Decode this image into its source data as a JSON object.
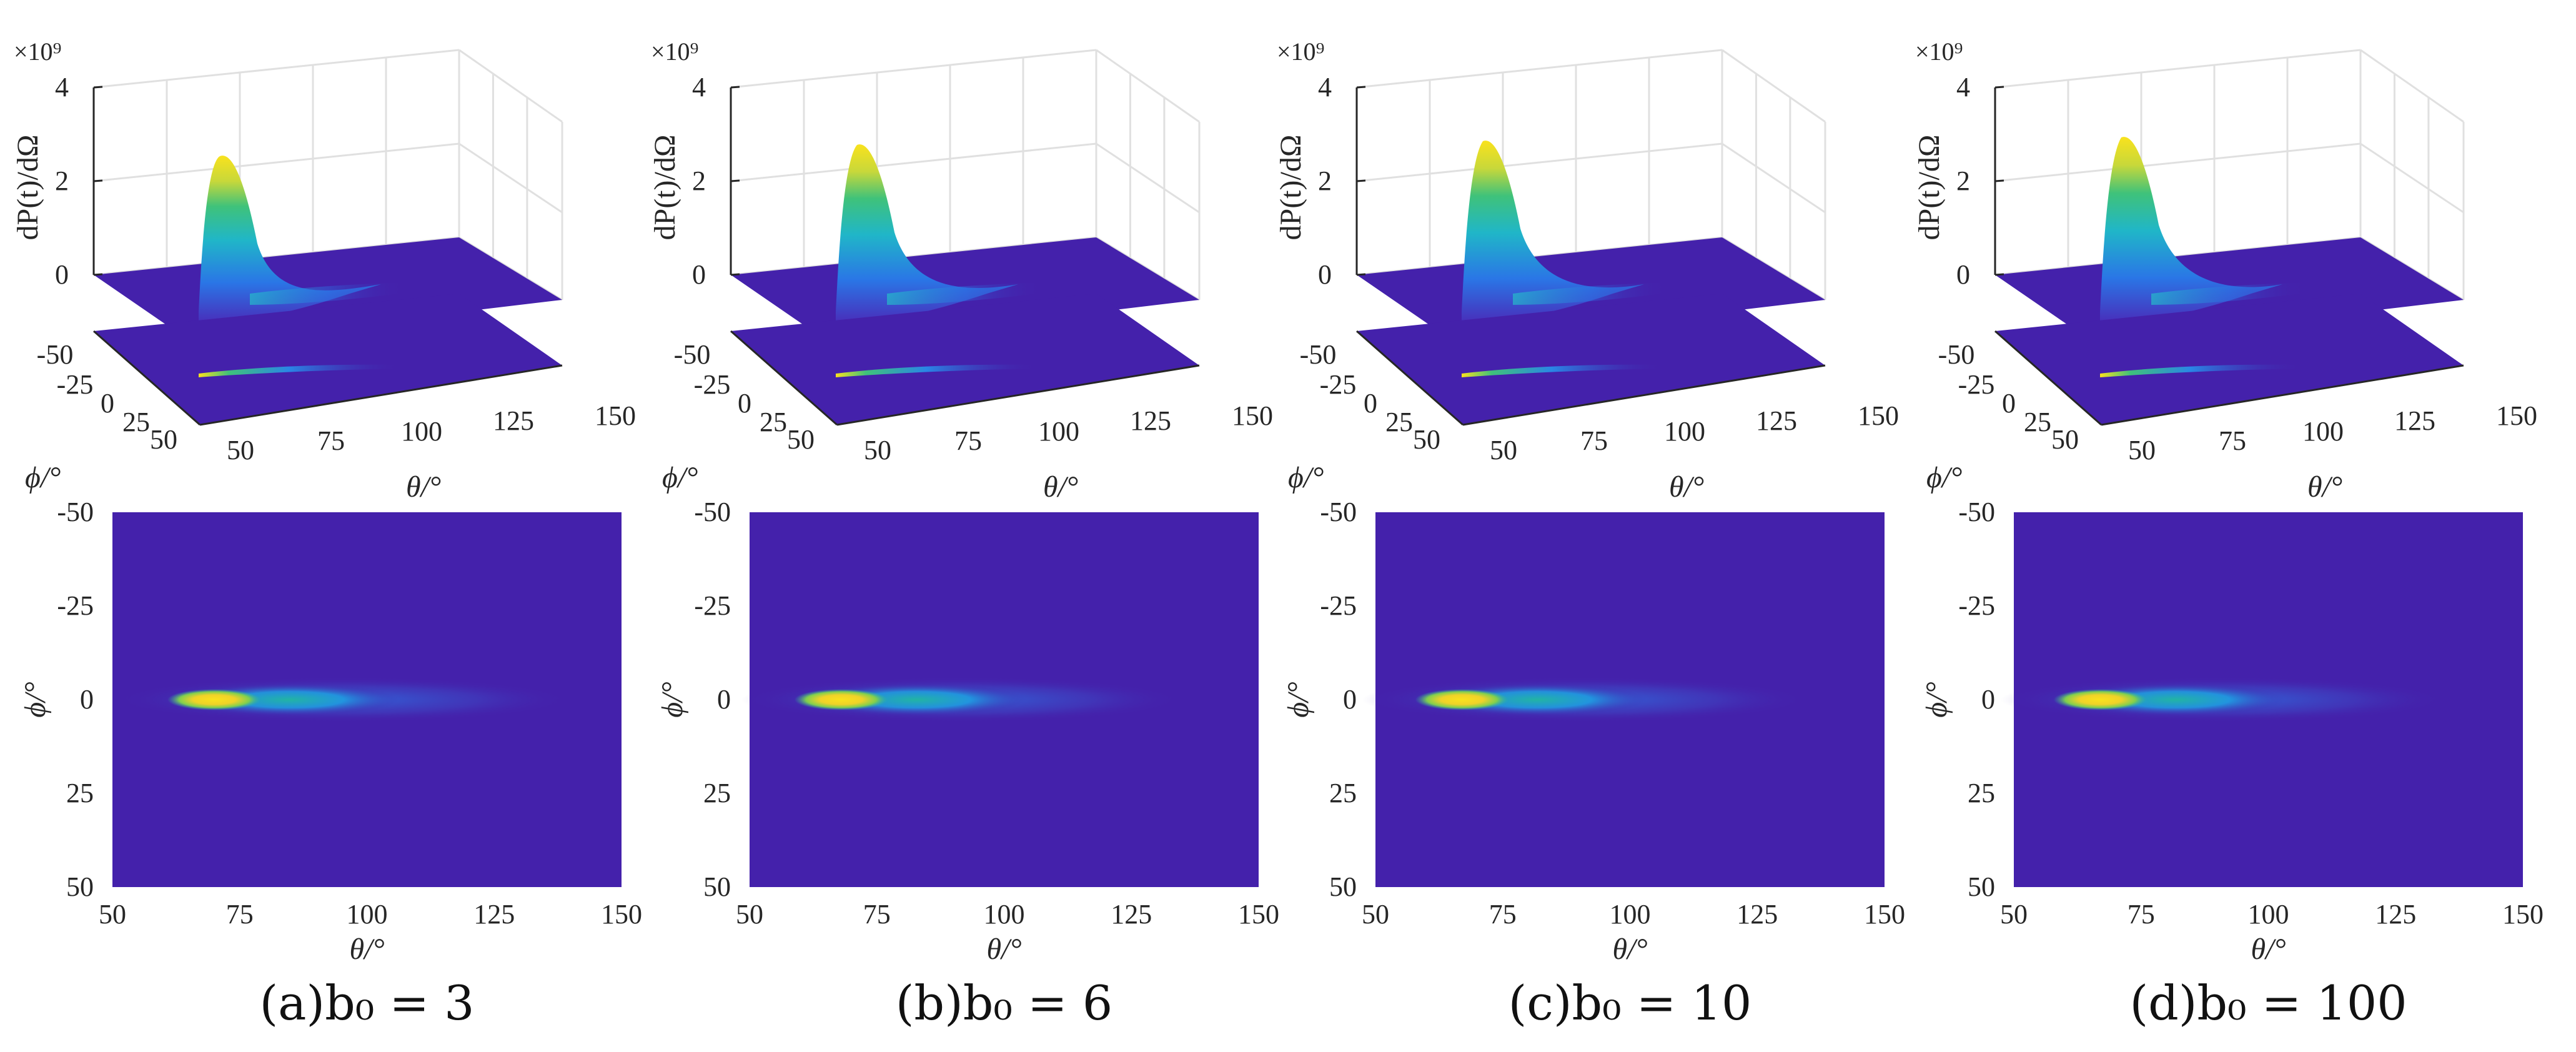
{
  "chart_data": [
    {
      "panel": "a",
      "caption": "(a)b₀ = 3",
      "type": "heatmap",
      "surface_3d": {
        "zlabel": "dP(t)/dΩ",
        "z_multiplier": "×10⁹",
        "z_ticks": [
          "0",
          "2",
          "4"
        ],
        "x_ticks": [
          "50",
          "75",
          "100",
          "125",
          "150"
        ],
        "y_ticks": [
          "-50",
          "-25",
          "0",
          "25",
          "50"
        ],
        "xlabel": "θ/°",
        "ylabel": "ϕ/°",
        "peak": {
          "theta": 70,
          "phi": 0,
          "value": 2.8
        }
      },
      "map_2d": {
        "xlabel": "θ/°",
        "ylabel": "ϕ/°",
        "x_ticks": [
          "50",
          "75",
          "100",
          "125",
          "150"
        ],
        "y_ticks": [
          "-50",
          "-25",
          "0",
          "25",
          "50"
        ],
        "xlim": [
          50,
          150
        ],
        "ylim": [
          -50,
          50
        ],
        "hotspot": {
          "theta_peak": 70,
          "phi": 0,
          "theta_tail_end": 130
        }
      }
    },
    {
      "panel": "b",
      "caption": "(b)b₀ = 6",
      "type": "heatmap",
      "surface_3d": {
        "zlabel": "dP(t)/dΩ",
        "z_multiplier": "×10⁹",
        "z_ticks": [
          "0",
          "2",
          "4"
        ],
        "x_ticks": [
          "50",
          "75",
          "100",
          "125",
          "150"
        ],
        "y_ticks": [
          "-50",
          "-25",
          "0",
          "25",
          "50"
        ],
        "xlabel": "θ/°",
        "ylabel": "ϕ/°",
        "peak": {
          "theta": 68,
          "phi": 0,
          "value": 3.1
        }
      },
      "map_2d": {
        "xlabel": "θ/°",
        "ylabel": "ϕ/°",
        "x_ticks": [
          "50",
          "75",
          "100",
          "125",
          "150"
        ],
        "y_ticks": [
          "-50",
          "-25",
          "0",
          "25",
          "50"
        ],
        "xlim": [
          50,
          150
        ],
        "ylim": [
          -50,
          50
        ],
        "hotspot": {
          "theta_peak": 68,
          "phi": 0,
          "theta_tail_end": 125
        }
      }
    },
    {
      "panel": "c",
      "caption": "(c)b₀ = 10",
      "type": "heatmap",
      "surface_3d": {
        "zlabel": "dP(t)/dΩ",
        "z_multiplier": "×10⁹",
        "z_ticks": [
          "0",
          "2",
          "4"
        ],
        "x_ticks": [
          "50",
          "75",
          "100",
          "125",
          "150"
        ],
        "y_ticks": [
          "-50",
          "-25",
          "0",
          "25",
          "50"
        ],
        "xlabel": "θ/°",
        "ylabel": "ϕ/°",
        "peak": {
          "theta": 67,
          "phi": 0,
          "value": 3.2
        }
      },
      "map_2d": {
        "xlabel": "θ/°",
        "ylabel": "ϕ/°",
        "x_ticks": [
          "50",
          "75",
          "100",
          "125",
          "150"
        ],
        "y_ticks": [
          "-50",
          "-25",
          "0",
          "25",
          "50"
        ],
        "xlim": [
          50,
          150
        ],
        "ylim": [
          -50,
          50
        ],
        "hotspot": {
          "theta_peak": 67,
          "phi": 0,
          "theta_tail_end": 125
        }
      }
    },
    {
      "panel": "d",
      "caption": "(d)b₀ = 100",
      "type": "heatmap",
      "surface_3d": {
        "zlabel": "dP(t)/dΩ",
        "z_multiplier": "×10⁹",
        "z_ticks": [
          "0",
          "2",
          "4"
        ],
        "x_ticks": [
          "50",
          "75",
          "100",
          "125",
          "150"
        ],
        "y_ticks": [
          "-50",
          "-25",
          "0",
          "25",
          "50"
        ],
        "xlabel": "θ/°",
        "ylabel": "ϕ/°",
        "peak": {
          "theta": 67,
          "phi": 0,
          "value": 3.3
        }
      },
      "map_2d": {
        "xlabel": "θ/°",
        "ylabel": "ϕ/°",
        "x_ticks": [
          "50",
          "75",
          "100",
          "125",
          "150"
        ],
        "y_ticks": [
          "-50",
          "-25",
          "0",
          "25",
          "50"
        ],
        "xlim": [
          50,
          150
        ],
        "ylim": [
          -50,
          50
        ],
        "hotspot": {
          "theta_peak": 67,
          "phi": 0,
          "theta_tail_end": 125
        }
      }
    }
  ],
  "colors": {
    "background_field": "#4421ab",
    "hot": "#f9e21d",
    "mid": "#22b4a3",
    "cool": "#2a76e6",
    "grid": "#e0e0e0",
    "axis": "#262626"
  }
}
